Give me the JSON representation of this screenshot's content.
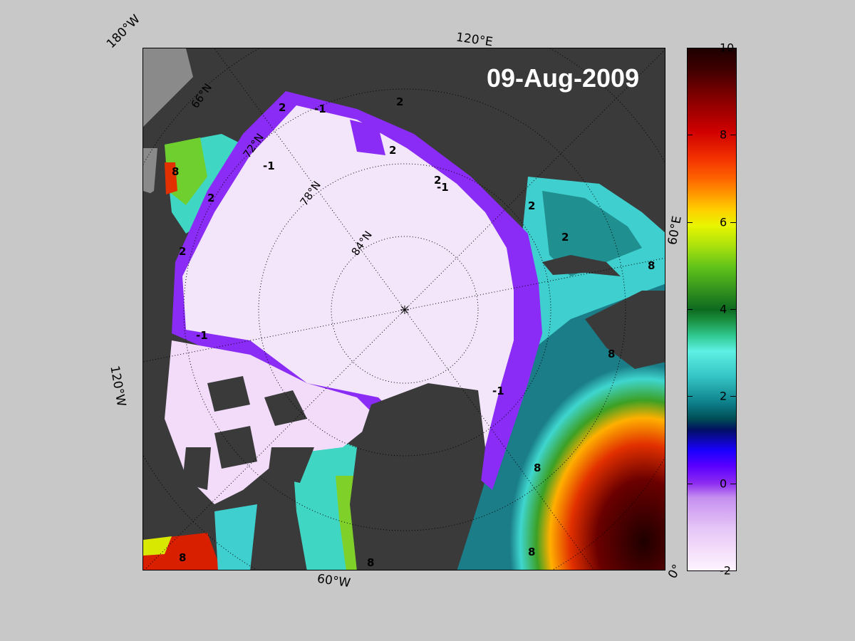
{
  "date": "09-Aug-2009",
  "edge_labels": {
    "top_left": "180°W",
    "top": "120°E",
    "right": "60°E",
    "left": "120°W",
    "bottom": "60°W",
    "bottom_right": "0°"
  },
  "latitude_labels": [
    "66°N",
    "72°N",
    "78°N",
    "84°N"
  ],
  "contour_labels": [
    "-1",
    "2",
    "8",
    "-1",
    "2",
    "8",
    "-1",
    "2",
    "8",
    "-1",
    "2",
    "8",
    "2",
    "-1",
    "2",
    "8",
    "2",
    "8",
    "2",
    "8"
  ],
  "colorbar": {
    "min": -2,
    "max": 10,
    "ticks": [
      "10",
      "8",
      "6",
      "4",
      "2",
      "0",
      "-2"
    ],
    "tick_values": [
      10,
      8,
      6,
      4,
      2,
      0,
      -2
    ]
  },
  "colors": {
    "land": "#3a3a3a",
    "ice": "#f4e6fa",
    "background": "#c8c8c8"
  }
}
